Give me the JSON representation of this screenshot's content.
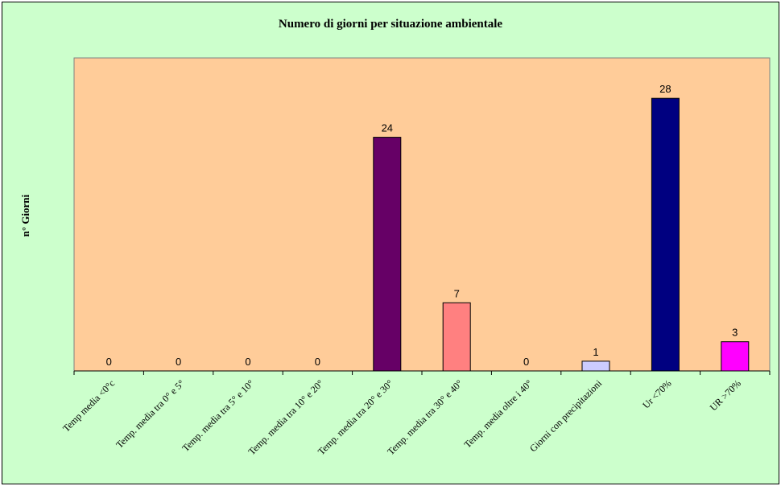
{
  "chart_data": {
    "type": "bar",
    "title": "Numero di giorni per situazione ambientale",
    "xlabel": "",
    "ylabel": "n° Giorni",
    "ylim": [
      0,
      30
    ],
    "grid": false,
    "legend": "none",
    "categories": [
      "Temp media <0°c",
      "Temp. media tra 0° e 5°",
      "Temp. media tra 5° e 10°",
      "Temp. media tra 10° e 20°",
      "Temp. media tra 20° e 30°",
      "Temp. media tra 30° e 40°",
      "Temp. media oltre i 40°",
      "Giorni con precipitazioni",
      "Ur <70%",
      "UR >70%"
    ],
    "values": [
      0,
      0,
      0,
      0,
      24,
      7,
      0,
      1,
      28,
      3
    ],
    "data_labels": [
      "0",
      "0",
      "0",
      "0",
      "24",
      "7",
      "0",
      "1",
      "28",
      "3"
    ],
    "colors": [
      "#660066",
      "#660066",
      "#660066",
      "#660066",
      "#660066",
      "#ff8080",
      "#ccccff",
      "#ccccff",
      "#000080",
      "#ff00ff"
    ],
    "plot_background": "#ffcc99",
    "chart_background": "#ccffcc"
  }
}
